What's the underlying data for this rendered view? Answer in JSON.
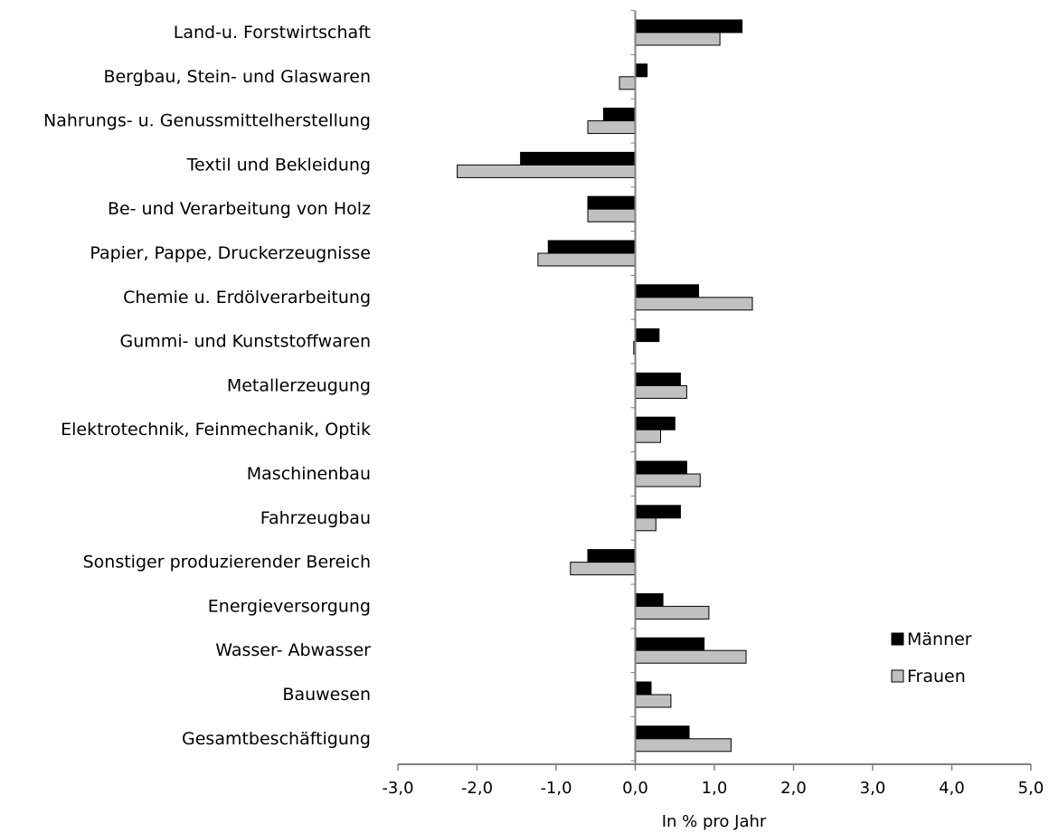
{
  "chart_data": {
    "type": "bar",
    "orientation": "horizontal",
    "categories": [
      "Land-u. Forstwirtschaft",
      "Bergbau, Stein- und Glaswaren",
      "Nahrungs- u. Genussmittelherstellung",
      "Textil und Bekleidung",
      "Be- und Verarbeitung von Holz",
      "Papier, Pappe,  Druckerzeugnisse",
      "Chemie u. Erdölverarbeitung",
      "Gummi- und Kunststoffwaren",
      "Metallerzeugung",
      "Elektrotechnik, Feinmechanik, Optik",
      "Maschinenbau",
      "Fahrzeugbau",
      "Sonstiger produzierender Bereich",
      "Energieversorgung",
      "Wasser- Abwasser",
      "Bauwesen",
      "Gesamtbeschäftigung"
    ],
    "series": [
      {
        "name": "Männer",
        "color": "#000000",
        "values": [
          1.35,
          0.15,
          -0.4,
          -1.45,
          -0.6,
          -1.1,
          0.8,
          0.3,
          0.57,
          0.5,
          0.65,
          0.57,
          -0.6,
          0.35,
          0.87,
          0.2,
          0.68
        ]
      },
      {
        "name": "Frauen",
        "color": "#c0c0c0",
        "values": [
          1.07,
          -0.2,
          -0.6,
          -2.25,
          -0.6,
          -1.23,
          1.48,
          -0.02,
          0.65,
          0.32,
          0.82,
          0.26,
          -0.82,
          0.93,
          1.4,
          0.45,
          1.21
        ]
      }
    ],
    "xlim": [
      -3,
      5
    ],
    "xticks": [
      "-3,0",
      "-2,0",
      "-1,0",
      "0,0",
      "1,0",
      "2,0",
      "3,0",
      "4,0",
      "5,0"
    ],
    "xlabel": "In % pro Jahr",
    "ylabel": "",
    "title": "",
    "grid": false,
    "legend_position": "right"
  }
}
